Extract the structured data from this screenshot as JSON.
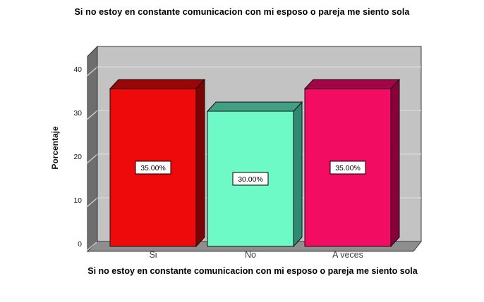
{
  "chart": {
    "title": "Si no estoy en constante comunicacion con mi esposo o pareja me siento sola",
    "xlabel": "Si no estoy en constante comunicacion con mi esposo o pareja me siento sola",
    "ylabel": "Porcentaje"
  },
  "chart_data": {
    "type": "bar",
    "style": "3d-column",
    "title": "Si no estoy en constante comunicacion con mi esposo o pareja me siento sola",
    "xlabel": "Si no estoy en constante comunicacion con mi esposo o pareja me siento sola",
    "ylabel": "Porcentaje",
    "categories": [
      "Si",
      "No",
      "A veces"
    ],
    "values": [
      35,
      30,
      35
    ],
    "value_labels": [
      "35.00%",
      "30.00%",
      "35.00%"
    ],
    "yticks": [
      0,
      10,
      20,
      30,
      40
    ],
    "ylim": [
      0,
      45
    ],
    "grid": "on",
    "legend": "none",
    "colors": {
      "bars": [
        {
          "front": "#ee0a0a",
          "top": "#9a0505",
          "side": "#7e0404"
        },
        {
          "front": "#6efac6",
          "top": "#41a083",
          "side": "#2e8a70"
        },
        {
          "front": "#f20c62",
          "top": "#a30347",
          "side": "#880239"
        }
      ],
      "back_wall": "#c3c3c3",
      "grid_line": "#d6d6d6",
      "left_wall": "#6e6e6e",
      "floor": "#8e8e8e",
      "tick_hatch": "#c9c9c9",
      "frame_stroke": "#3a3a3a",
      "bar_stroke": "#111111",
      "tick_text": "#1a1a1a",
      "category_text": "#3d3d3d",
      "label_box_bg": "#ffffff",
      "label_box_border": "#000000"
    }
  }
}
